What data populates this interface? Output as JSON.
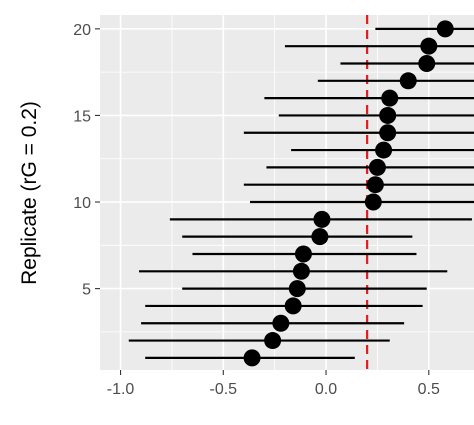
{
  "chart_data": {
    "type": "scatter",
    "subtype": "forest-plot",
    "title": "",
    "xlabel": "",
    "ylabel": "Replicate (rG = 0.2)",
    "xlim": [
      -1.1,
      0.72
    ],
    "ylim": [
      0.3,
      20.8
    ],
    "x_ticks": [
      -1.0,
      -0.5,
      0.0,
      0.5
    ],
    "x_tick_labels": [
      "-1.0",
      "-0.5",
      "0.0",
      "0.5"
    ],
    "y_ticks": [
      5,
      10,
      15,
      20
    ],
    "y_tick_labels": [
      "5",
      "10",
      "15",
      "20"
    ],
    "reference_line": {
      "x": 0.2,
      "style": "dashed",
      "color": "#e41a1c"
    },
    "grid": true,
    "panel_background": "#ebebeb",
    "point_color": "#000000",
    "series": [
      {
        "points": [
          {
            "y": 1,
            "estimate": -0.36,
            "lower": -0.88,
            "upper": 0.14
          },
          {
            "y": 2,
            "estimate": -0.26,
            "lower": -0.96,
            "upper": 0.31
          },
          {
            "y": 3,
            "estimate": -0.22,
            "lower": -0.9,
            "upper": 0.38
          },
          {
            "y": 4,
            "estimate": -0.16,
            "lower": -0.88,
            "upper": 0.47
          },
          {
            "y": 5,
            "estimate": -0.14,
            "lower": -0.7,
            "upper": 0.49
          },
          {
            "y": 6,
            "estimate": -0.12,
            "lower": -0.91,
            "upper": 0.59
          },
          {
            "y": 7,
            "estimate": -0.11,
            "lower": -0.65,
            "upper": 0.44
          },
          {
            "y": 8,
            "estimate": -0.03,
            "lower": -0.7,
            "upper": 0.42
          },
          {
            "y": 9,
            "estimate": -0.02,
            "lower": -0.76,
            "upper": 0.71
          },
          {
            "y": 10,
            "estimate": 0.23,
            "lower": -0.37,
            "upper": 0.72
          },
          {
            "y": 11,
            "estimate": 0.24,
            "lower": -0.4,
            "upper": 0.72
          },
          {
            "y": 12,
            "estimate": 0.25,
            "lower": -0.29,
            "upper": 0.72
          },
          {
            "y": 13,
            "estimate": 0.28,
            "lower": -0.17,
            "upper": 0.72
          },
          {
            "y": 14,
            "estimate": 0.3,
            "lower": -0.4,
            "upper": 0.72
          },
          {
            "y": 15,
            "estimate": 0.3,
            "lower": -0.23,
            "upper": 0.72
          },
          {
            "y": 16,
            "estimate": 0.31,
            "lower": -0.3,
            "upper": 0.72
          },
          {
            "y": 17,
            "estimate": 0.4,
            "lower": -0.04,
            "upper": 0.72
          },
          {
            "y": 18,
            "estimate": 0.49,
            "lower": 0.07,
            "upper": 0.72
          },
          {
            "y": 19,
            "estimate": 0.5,
            "lower": -0.2,
            "upper": 0.72
          },
          {
            "y": 20,
            "estimate": 0.58,
            "lower": 0.24,
            "upper": 0.72
          }
        ]
      }
    ]
  }
}
